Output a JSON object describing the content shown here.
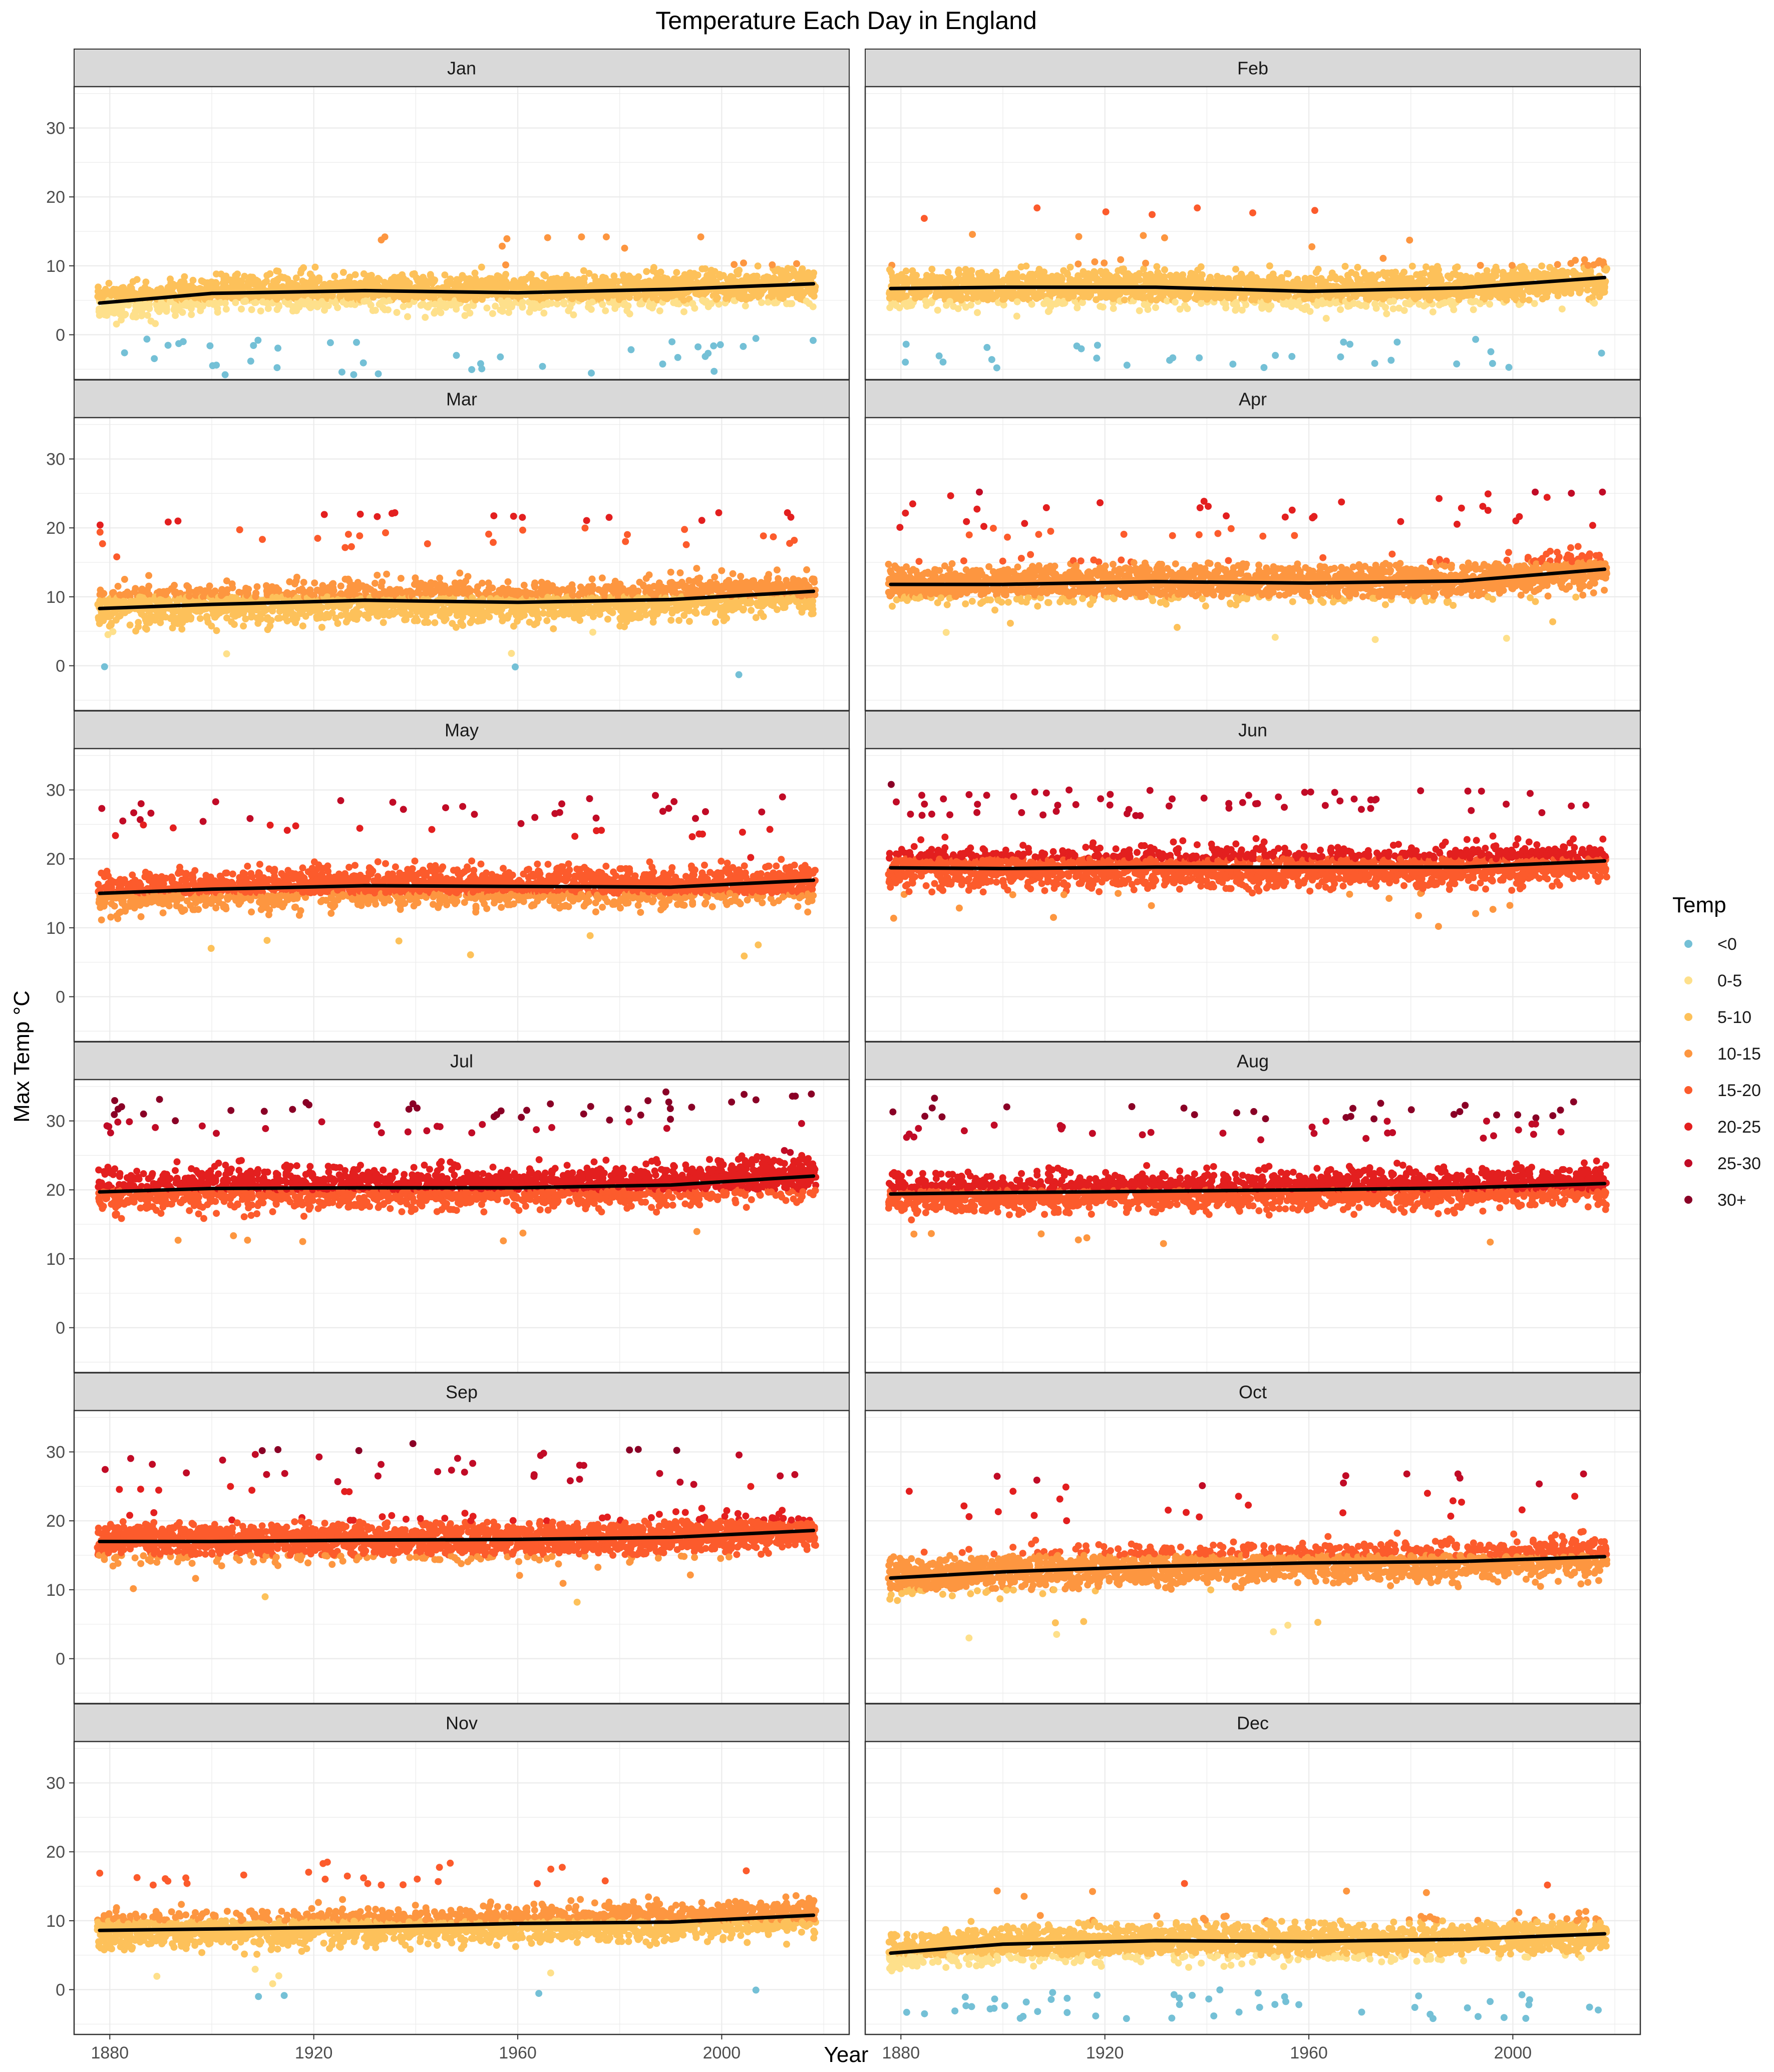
{
  "chart_data": {
    "type": "scatter",
    "title": "Temperature Each Day in England",
    "xlabel": "Year",
    "ylabel": "Max Temp °C",
    "facet_by": "month",
    "facet_columns": 2,
    "xlim": [
      1873,
      2025
    ],
    "ylim": [
      -6.5,
      36
    ],
    "x_ticks": [
      1880,
      1920,
      1960,
      2000
    ],
    "y_ticks": [
      0,
      10,
      20,
      30
    ],
    "grid": true,
    "point_size_note": "one point per day",
    "legend": {
      "title": "Temp",
      "position": "right",
      "entries": [
        {
          "label": "<0",
          "color": "#74c0d6"
        },
        {
          "label": "0-5",
          "color": "#fee08b"
        },
        {
          "label": "5-10",
          "color": "#fdc15a"
        },
        {
          "label": "10-15",
          "color": "#fd9640"
        },
        {
          "label": "15-20",
          "color": "#fc5b2c"
        },
        {
          "label": "20-25",
          "color": "#e31f1f"
        },
        {
          "label": "25-30",
          "color": "#c10b26"
        },
        {
          "label": "30+",
          "color": "#8a0026"
        }
      ]
    },
    "trend_color": "#000000",
    "panels": [
      {
        "month": "Jan",
        "trend": {
          "x": [
            1878,
            1900,
            1930,
            1960,
            1990,
            2018
          ],
          "y": [
            4.6,
            6.0,
            6.4,
            6.1,
            6.6,
            7.4
          ]
        },
        "typical_range": [
          -0.5,
          11.5
        ],
        "min_observed": -5.8,
        "max_observed": 14.2,
        "low_outliers": 40,
        "high_outliers": 8
      },
      {
        "month": "Feb",
        "trend": {
          "x": [
            1878,
            1900,
            1930,
            1960,
            1990,
            2018
          ],
          "y": [
            6.7,
            6.9,
            6.9,
            6.3,
            6.8,
            8.3
          ]
        },
        "typical_range": [
          -0.5,
          12.0
        ],
        "min_observed": -4.8,
        "max_observed": 18.4,
        "low_outliers": 30,
        "high_outliers": 12
      },
      {
        "month": "Mar",
        "trend": {
          "x": [
            1878,
            1900,
            1930,
            1960,
            1990,
            2018
          ],
          "y": [
            8.3,
            8.9,
            9.5,
            9.2,
            9.6,
            10.8
          ]
        },
        "typical_range": [
          2.0,
          15.5
        ],
        "min_observed": -1.3,
        "max_observed": 22.2,
        "low_outliers": 4,
        "high_outliers": 40
      },
      {
        "month": "Apr",
        "trend": {
          "x": [
            1878,
            1900,
            1930,
            1960,
            1990,
            2018
          ],
          "y": [
            11.8,
            11.8,
            12.2,
            12.0,
            12.3,
            14.0
          ]
        },
        "typical_range": [
          6.5,
          19.0
        ],
        "min_observed": 3.8,
        "max_observed": 25.2,
        "low_outliers": 6,
        "high_outliers": 45
      },
      {
        "month": "May",
        "trend": {
          "x": [
            1878,
            1900,
            1930,
            1960,
            1990,
            2018
          ],
          "y": [
            15.0,
            15.6,
            16.1,
            16.0,
            15.9,
            16.9
          ]
        },
        "typical_range": [
          10.0,
          23.5
        ],
        "min_observed": 5.9,
        "max_observed": 29.2,
        "low_outliers": 6,
        "high_outliers": 45
      },
      {
        "month": "Jun",
        "trend": {
          "x": [
            1878,
            1900,
            1930,
            1960,
            1990,
            2018
          ],
          "y": [
            18.7,
            18.6,
            18.8,
            18.8,
            18.8,
            19.7
          ]
        },
        "typical_range": [
          13.5,
          27.0
        ],
        "min_observed": 10.2,
        "max_observed": 30.8,
        "low_outliers": 8,
        "high_outliers": 60
      },
      {
        "month": "Jul",
        "trend": {
          "x": [
            1878,
            1900,
            1930,
            1960,
            1990,
            2018
          ],
          "y": [
            19.7,
            20.2,
            20.3,
            20.3,
            20.7,
            22.0
          ]
        },
        "typical_range": [
          15.0,
          29.0
        ],
        "min_observed": 12.5,
        "max_observed": 34.2,
        "low_outliers": 6,
        "high_outliers": 60
      },
      {
        "month": "Aug",
        "trend": {
          "x": [
            1878,
            1900,
            1930,
            1960,
            1990,
            2018
          ],
          "y": [
            19.4,
            19.6,
            19.8,
            20.0,
            20.3,
            20.9
          ]
        },
        "typical_range": [
          15.0,
          28.0
        ],
        "min_observed": 12.2,
        "max_observed": 33.3,
        "low_outliers": 6,
        "high_outliers": 55
      },
      {
        "month": "Sep",
        "trend": {
          "x": [
            1878,
            1900,
            1930,
            1960,
            1990,
            2018
          ],
          "y": [
            17.0,
            17.0,
            17.2,
            17.3,
            17.6,
            18.6
          ]
        },
        "typical_range": [
          12.5,
          25.0
        ],
        "min_observed": 8.2,
        "max_observed": 31.2,
        "low_outliers": 6,
        "high_outliers": 45
      },
      {
        "month": "Oct",
        "trend": {
          "x": [
            1878,
            1900,
            1930,
            1960,
            1990,
            2018
          ],
          "y": [
            11.7,
            12.6,
            13.4,
            13.9,
            14.1,
            14.8
          ]
        },
        "typical_range": [
          6.5,
          19.5
        ],
        "min_observed": 3.0,
        "max_observed": 26.8,
        "low_outliers": 6,
        "high_outliers": 30
      },
      {
        "month": "Nov",
        "trend": {
          "x": [
            1878,
            1900,
            1930,
            1960,
            1990,
            2018
          ],
          "y": [
            8.6,
            8.8,
            9.1,
            9.6,
            9.8,
            10.8
          ]
        },
        "typical_range": [
          3.0,
          15.0
        ],
        "min_observed": -1.0,
        "max_observed": 18.5,
        "low_outliers": 8,
        "high_outliers": 25
      },
      {
        "month": "Dec",
        "trend": {
          "x": [
            1878,
            1900,
            1930,
            1960,
            1990,
            2018
          ],
          "y": [
            5.3,
            6.6,
            7.1,
            7.0,
            7.3,
            8.1
          ]
        },
        "typical_range": [
          0.0,
          12.5
        ],
        "min_observed": -4.2,
        "max_observed": 15.4,
        "low_outliers": 50,
        "high_outliers": 6
      }
    ]
  }
}
